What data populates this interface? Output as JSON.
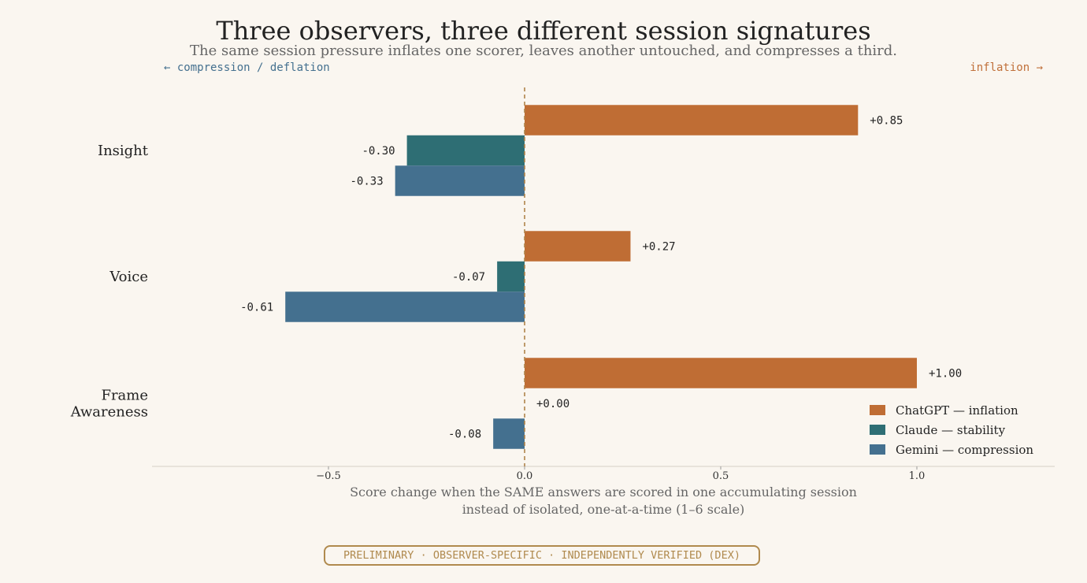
{
  "chart_data": {
    "type": "bar",
    "orientation": "horizontal",
    "title": "Three observers, three different session signatures",
    "subtitle": "The same session pressure inflates one scorer, leaves another untouched, and compresses a third.",
    "direction_left": "←  compression / deflation",
    "direction_right": "inflation  →",
    "categories": [
      "Insight",
      "Voice",
      "Frame\nAwareness"
    ],
    "series": [
      {
        "name": "ChatGPT — inflation",
        "color": "#bf6d34",
        "values": [
          0.85,
          0.27,
          1.0
        ],
        "labels": [
          "+0.85",
          "+0.27",
          "+1.00"
        ]
      },
      {
        "name": "Claude — stability",
        "color": "#2e6e74",
        "values": [
          -0.3,
          -0.07,
          0.0
        ],
        "labels": [
          "-0.30",
          "-0.07",
          "+0.00"
        ]
      },
      {
        "name": "Gemini — compression",
        "color": "#44708f",
        "values": [
          -0.33,
          -0.61,
          -0.08
        ],
        "labels": [
          "-0.33",
          "-0.61",
          "-0.08"
        ]
      }
    ],
    "xlim": [
      -0.95,
      1.35
    ],
    "xticks": [
      -0.5,
      0.0,
      0.5,
      1.0
    ],
    "xtick_labels": [
      "−0.5",
      "0.0",
      "0.5",
      "1.0"
    ],
    "xlabel": "Score change when the SAME answers are scored in one accumulating session\ninstead of isolated, one-at-a-time  (1–6 scale)",
    "reference_line": 0,
    "legend_position": "bottom-right",
    "grid": false
  },
  "footer_badge": "PRELIMINARY · OBSERVER-SPECIFIC · INDEPENDENTLY VERIFIED (DEX)"
}
